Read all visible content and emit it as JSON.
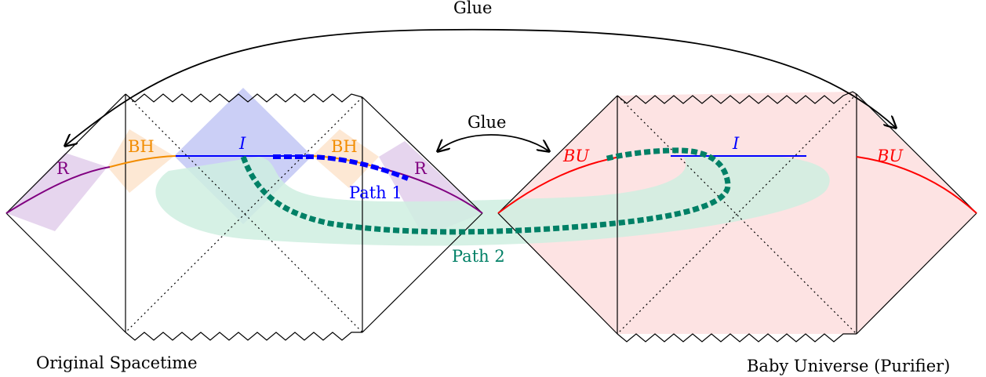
{
  "labels": {
    "glue_top": "Glue",
    "glue_mid": "Glue",
    "original_spacetime": "Original Spacetime",
    "baby_universe": "Baby Universe (Purifier)",
    "r_left": "R",
    "r_right": "R",
    "bh_left": "BH",
    "bh_right": "BH",
    "island_left": "I",
    "island_right": "I",
    "bu_left": "BU",
    "bu_right": "BU",
    "path1": "Path 1",
    "path2": "Path 2"
  },
  "colors": {
    "r_region": "#800080",
    "bh_region": "#f28c00",
    "island": "#0000ff",
    "baby_universe": "#ff0000",
    "path2": "#008066",
    "baby_fill": "#fde3e3",
    "path2_band": "#cfeee0",
    "island_fill": "#c8ccf5",
    "r_fill": "#e6d5ee",
    "bh_fill": "#fde8d4"
  }
}
